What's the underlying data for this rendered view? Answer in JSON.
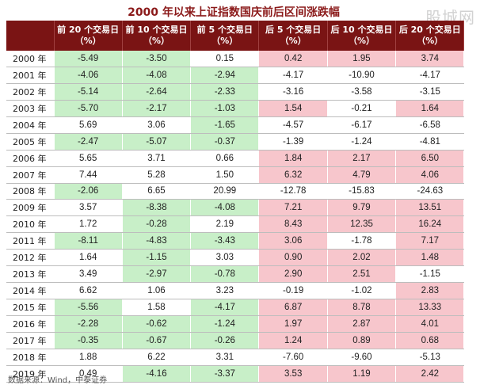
{
  "title": "2000 年以来上证指数国庆前后区间涨跌幅",
  "watermark": "股城网",
  "footer": "数据来源：Wind，中泰证券",
  "chart_data": {
    "type": "table",
    "title": "2000 年以来上证指数国庆前后区间涨跌幅",
    "columns": [
      "",
      "前 20 个交易日（%）",
      "前 10 个交易日（%）",
      "前 5 个交易日（%）",
      "后 5 个交易日（%）",
      "后 10 个交易日（%）",
      "后 20 个交易日（%）"
    ],
    "rows": [
      {
        "year": "2000 年",
        "values": [
          "-5.49",
          "-3.50",
          "0.15",
          "0.42",
          "1.95",
          "3.74"
        ]
      },
      {
        "year": "2001 年",
        "values": [
          "-4.06",
          "-4.08",
          "-2.94",
          "-4.17",
          "-10.90",
          "-4.17"
        ]
      },
      {
        "year": "2002 年",
        "values": [
          "-5.14",
          "-2.64",
          "-2.33",
          "-3.16",
          "-3.58",
          "-3.15"
        ]
      },
      {
        "year": "2003 年",
        "values": [
          "-5.70",
          "-2.17",
          "-1.03",
          "1.54",
          "-0.21",
          "1.64"
        ]
      },
      {
        "year": "2004 年",
        "values": [
          "5.69",
          "3.06",
          "-1.65",
          "-4.57",
          "-6.17",
          "-6.58"
        ]
      },
      {
        "year": "2005 年",
        "values": [
          "-2.47",
          "-5.07",
          "-0.37",
          "-1.39",
          "-1.24",
          "-4.81"
        ]
      },
      {
        "year": "2006 年",
        "values": [
          "5.65",
          "3.71",
          "0.66",
          "1.84",
          "2.17",
          "6.50"
        ]
      },
      {
        "year": "2007 年",
        "values": [
          "7.44",
          "5.28",
          "1.50",
          "6.32",
          "4.79",
          "4.06"
        ]
      },
      {
        "year": "2008 年",
        "values": [
          "-2.06",
          "6.65",
          "20.99",
          "-12.78",
          "-15.83",
          "-24.63"
        ]
      },
      {
        "year": "2009 年",
        "values": [
          "3.57",
          "-8.38",
          "-4.08",
          "7.21",
          "9.79",
          "13.51"
        ]
      },
      {
        "year": "2010 年",
        "values": [
          "1.72",
          "-0.28",
          "2.19",
          "8.43",
          "12.35",
          "16.24"
        ]
      },
      {
        "year": "2011 年",
        "values": [
          "-8.11",
          "-4.83",
          "-3.43",
          "3.06",
          "-1.78",
          "7.17"
        ]
      },
      {
        "year": "2012 年",
        "values": [
          "1.64",
          "-1.15",
          "3.03",
          "0.90",
          "2.02",
          "1.48"
        ]
      },
      {
        "year": "2013 年",
        "values": [
          "3.49",
          "-2.97",
          "-0.78",
          "2.90",
          "2.51",
          "-1.15"
        ]
      },
      {
        "year": "2014 年",
        "values": [
          "6.62",
          "1.06",
          "3.23",
          "-0.19",
          "-1.02",
          "2.83"
        ]
      },
      {
        "year": "2015 年",
        "values": [
          "-5.56",
          "1.58",
          "-4.17",
          "6.87",
          "8.78",
          "13.33"
        ]
      },
      {
        "year": "2016 年",
        "values": [
          "-2.28",
          "-0.62",
          "-1.24",
          "1.97",
          "2.87",
          "4.01"
        ]
      },
      {
        "year": "2017 年",
        "values": [
          "-0.35",
          "-0.67",
          "-0.26",
          "1.24",
          "0.89",
          "0.68"
        ]
      },
      {
        "year": "2018 年",
        "values": [
          "1.88",
          "6.22",
          "3.31",
          "-7.60",
          "-9.60",
          "-5.13"
        ]
      },
      {
        "year": "2019 年",
        "values": [
          "0.49",
          "-4.16",
          "-3.37",
          "3.53",
          "1.19",
          "2.42"
        ]
      }
    ],
    "highlight_colors": {
      "positive_after": "#f7c6cc",
      "negative_before": "#c8efc8",
      "header": "#7a1414"
    }
  }
}
